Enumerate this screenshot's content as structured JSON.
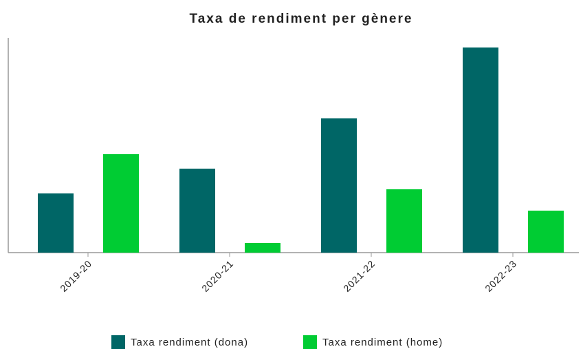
{
  "chart_data": {
    "type": "bar",
    "title": "Taxa de rendiment per gènere",
    "categories": [
      "2019-20",
      "2020-21",
      "2021-22",
      "2022-23"
    ],
    "series": [
      {
        "name": "Taxa rendiment (dona)",
        "color": "#006666",
        "values": [
          86,
          122,
          195,
          298
        ]
      },
      {
        "name": "Taxa rendiment (home)",
        "color": "#00cc33",
        "values": [
          143,
          14,
          92,
          61
        ]
      }
    ],
    "ylim": [
      0,
      312
    ],
    "legend": "bottom"
  }
}
